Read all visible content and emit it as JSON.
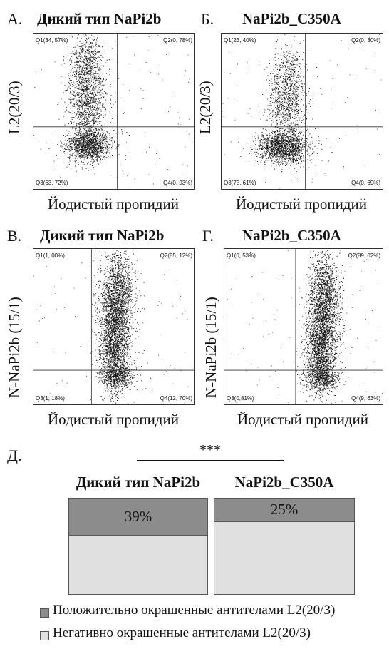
{
  "panels": [
    {
      "letter": "А.",
      "title": "Дикий тип NaPi2b",
      "ylabel": "L2(20/3)",
      "xlabel": "Йодистый пропидий",
      "q1": "Q1(34, 57%)",
      "q2": "Q2(0, 78%)",
      "q3": "Q3(63, 72%)",
      "q4": "Q4(0, 93%)"
    },
    {
      "letter": "Б.",
      "title": "NaPi2b_C350A",
      "ylabel": "L2(20/3)",
      "xlabel": "Йодистый пропидий",
      "q1": "Q1(23, 40%)",
      "q2": "Q2(0, 30%)",
      "q3": "Q3(75, 61%)",
      "q4": "Q4(0, 69%)"
    },
    {
      "letter": "В.",
      "title": "Дикий тип NaPi2b",
      "ylabel": "N-NaPi2b (15/1)",
      "xlabel": "Йодистый пропидий",
      "q1": "Q1(1, 00%)",
      "q2": "Q2(85, 12%)",
      "q3": "Q3(1, 18%)",
      "q4": "Q4(12, 70%)"
    },
    {
      "letter": "Г.",
      "title": "NaPi2b_C350A",
      "ylabel": "N-NaPi2b (15/1)",
      "xlabel": "Йодистый пропидий",
      "q1": "Q1(0, 53%)",
      "q2": "Q2(89, 02%)",
      "q3": "Q3(0,81%)",
      "q4": "Q4(9, 63%)"
    }
  ],
  "bottom": {
    "letter": "Д.",
    "significance": "***",
    "legend_positive": "Положительно окрашенные антителами L2(20/3)",
    "legend_negative": "Негативно окрашенные антителами L2(20/3)"
  },
  "chart_data": [
    {
      "type": "scatter",
      "title": "Дикий тип NaPi2b",
      "xlabel": "Йодистый пропидий",
      "ylabel": "L2(20/3)",
      "quadrants": {
        "Q1": "34, 57%",
        "Q2": "0, 78%",
        "Q3": "63, 72%",
        "Q4": "0, 93%"
      }
    },
    {
      "type": "scatter",
      "title": "NaPi2b_C350A",
      "xlabel": "Йодистый пропидий",
      "ylabel": "L2(20/3)",
      "quadrants": {
        "Q1": "23, 40%",
        "Q2": "0, 30%",
        "Q3": "75, 61%",
        "Q4": "0, 69%"
      }
    },
    {
      "type": "scatter",
      "title": "Дикий тип NaPi2b",
      "xlabel": "Йодистый пропидий",
      "ylabel": "N-NaPi2b (15/1)",
      "quadrants": {
        "Q1": "1, 00%",
        "Q2": "85, 12%",
        "Q3": "1, 18%",
        "Q4": "12, 70%"
      }
    },
    {
      "type": "scatter",
      "title": "NaPi2b_C350A",
      "xlabel": "Йодистый пропидий",
      "ylabel": "N-NaPi2b (15/1)",
      "quadrants": {
        "Q1": "0, 53%",
        "Q2": "89, 02%",
        "Q3": "0,81%",
        "Q4": "9, 63%"
      }
    },
    {
      "type": "bar",
      "stacked": true,
      "categories": [
        "Дикий тип NaPi2b",
        "NaPi2b_C350A"
      ],
      "series": [
        {
          "name": "Положительно окрашенные антителами L2(20/3)",
          "values": [
            39,
            25
          ],
          "labels": [
            "39%",
            "25%"
          ],
          "color": "#8c8c8c"
        },
        {
          "name": "Негативно окрашенные антителами L2(20/3)",
          "values": [
            61,
            75
          ],
          "color": "#e0e0e0"
        }
      ],
      "ylim": [
        0,
        100
      ]
    }
  ]
}
